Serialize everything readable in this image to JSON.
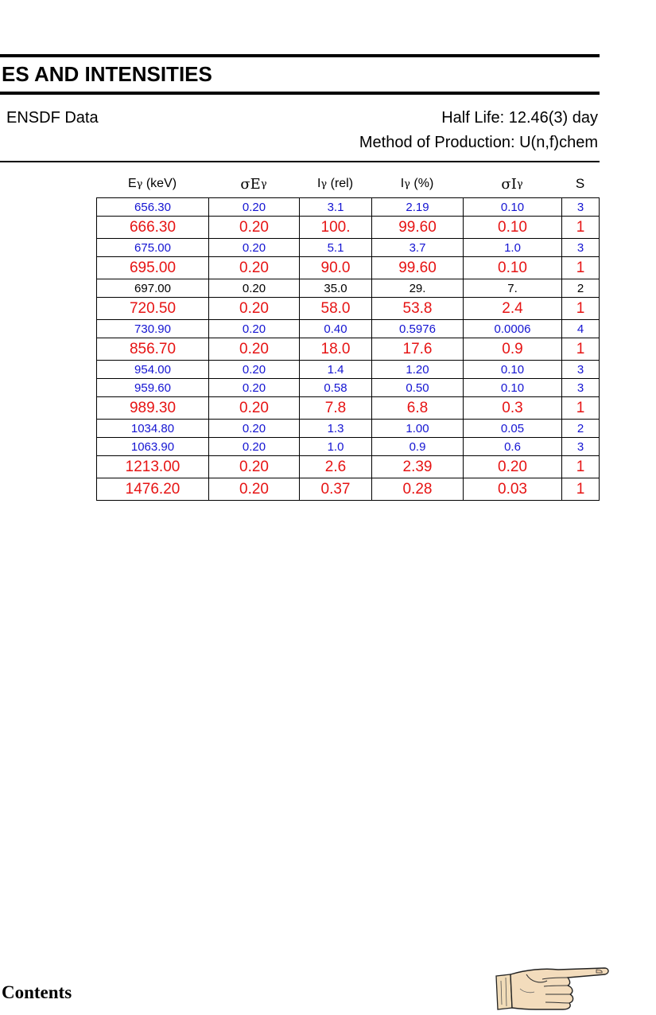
{
  "header": {
    "title": "ES AND INTENSITIES",
    "source": "ENSDF Data",
    "half_life": "Half Life: 12.46(3) day",
    "method": "Method of Production: U(n,f)chem"
  },
  "table": {
    "columns": [
      {
        "main": "E",
        "sub": "γ",
        "suffix": " (keV)"
      },
      {
        "main": "σE",
        "sub": "γ",
        "suffix": ""
      },
      {
        "main": "I",
        "sub": "γ",
        "suffix": " (rel)"
      },
      {
        "main": "I",
        "sub": "γ",
        "suffix": " (%)"
      },
      {
        "main": "σI",
        "sub": "γ",
        "suffix": ""
      },
      {
        "main": "S",
        "sub": "",
        "suffix": ""
      }
    ],
    "rows": [
      {
        "style": "small",
        "color": "#1414d2",
        "cells": [
          "656.30",
          "0.20",
          "3.1",
          "2.19",
          "0.10",
          "3"
        ]
      },
      {
        "style": "big",
        "color": "#e61414",
        "cells": [
          "666.30",
          "0.20",
          "100.",
          "99.60",
          "0.10",
          "1"
        ]
      },
      {
        "style": "small",
        "color": "#1414d2",
        "cells": [
          "675.00",
          "0.20",
          "5.1",
          "3.7",
          "1.0",
          "3"
        ]
      },
      {
        "style": "big",
        "color": "#e61414",
        "cells": [
          "695.00",
          "0.20",
          "90.0",
          "99.60",
          "0.10",
          "1"
        ]
      },
      {
        "style": "small",
        "color": "#000000",
        "cells": [
          "697.00",
          "0.20",
          "35.0",
          "29.",
          "7.",
          "2"
        ]
      },
      {
        "style": "big",
        "color": "#e61414",
        "cells": [
          "720.50",
          "0.20",
          "58.0",
          "53.8",
          "2.4",
          "1"
        ]
      },
      {
        "style": "small",
        "color": "#1414d2",
        "cells": [
          "730.90",
          "0.20",
          "0.40",
          "0.5976",
          "0.0006",
          "4"
        ]
      },
      {
        "style": "big",
        "color": "#e61414",
        "cells": [
          "856.70",
          "0.20",
          "18.0",
          "17.6",
          "0.9",
          "1"
        ]
      },
      {
        "style": "small",
        "color": "#1414d2",
        "cells": [
          "954.00",
          "0.20",
          "1.4",
          "1.20",
          "0.10",
          "3"
        ]
      },
      {
        "style": "small",
        "color": "#1414d2",
        "cells": [
          "959.60",
          "0.20",
          "0.58",
          "0.50",
          "0.10",
          "3"
        ]
      },
      {
        "style": "big",
        "color": "#e61414",
        "cells": [
          "989.30",
          "0.20",
          "7.8",
          "6.8",
          "0.3",
          "1"
        ]
      },
      {
        "style": "small",
        "color": "#1414d2",
        "cells": [
          "1034.80",
          "0.20",
          "1.3",
          "1.00",
          "0.05",
          "2"
        ]
      },
      {
        "style": "small",
        "color": "#1414d2",
        "cells": [
          "1063.90",
          "0.20",
          "1.0",
          "0.9",
          "0.6",
          "3"
        ]
      },
      {
        "style": "big",
        "color": "#e61414",
        "cells": [
          "1213.00",
          "0.20",
          "2.6",
          "2.39",
          "0.20",
          "1"
        ]
      },
      {
        "style": "big",
        "color": "#e61414",
        "cells": [
          "1476.20",
          "0.20",
          "0.37",
          "0.28",
          "0.03",
          "1"
        ]
      }
    ]
  },
  "footer": {
    "contents_label": "Contents",
    "next_icon": "pointing-hand-icon"
  }
}
